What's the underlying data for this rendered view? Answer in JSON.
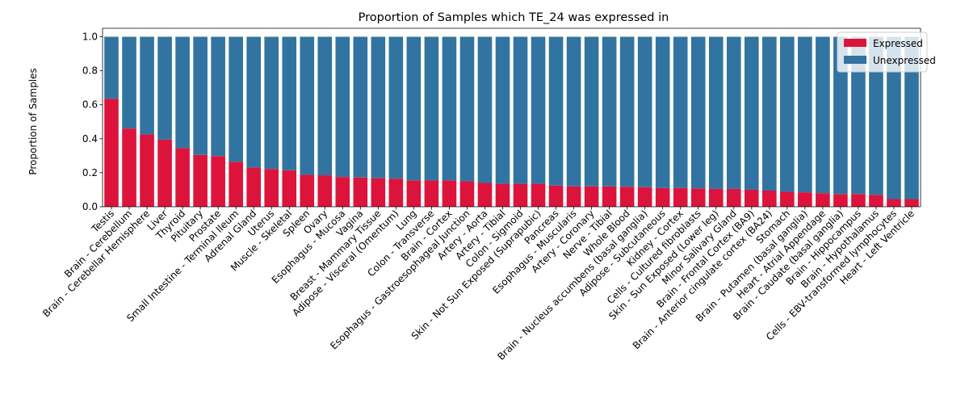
{
  "chart_data": {
    "type": "bar",
    "stacked": true,
    "title": "Proportion of Samples which TE_24 was expressed in",
    "xlabel": "",
    "ylabel": "Proportion of Samples",
    "ylim": [
      0,
      1.05
    ],
    "yticks": [
      "0.0",
      "0.2",
      "0.4",
      "0.6",
      "0.8",
      "1.0"
    ],
    "grid": false,
    "legend_position": "top-right",
    "categories": [
      "Testis",
      "Brain - Cerebellum",
      "Brain - Cerebellar Hemisphere",
      "Liver",
      "Thyroid",
      "Pituitary",
      "Prostate",
      "Small Intestine - Terminal Ileum",
      "Adrenal Gland",
      "Uterus",
      "Muscle - Skeletal",
      "Spleen",
      "Ovary",
      "Esophagus - Mucosa",
      "Vagina",
      "Breast - Mammary Tissue",
      "Adipose - Visceral (Omentum)",
      "Lung",
      "Colon - Transverse",
      "Brain - Cortex",
      "Esophagus - Gastroesophageal Junction",
      "Artery - Aorta",
      "Artery - Tibial",
      "Colon - Sigmoid",
      "Skin - Not Sun Exposed (Suprapubic)",
      "Pancreas",
      "Esophagus - Muscularis",
      "Artery - Coronary",
      "Nerve - Tibial",
      "Whole Blood",
      "Brain - Nucleus accumbens (basal ganglia)",
      "Adipose - Subcutaneous",
      "Kidney - Cortex",
      "Cells - Cultured fibroblasts",
      "Skin - Sun Exposed (Lower leg)",
      "Minor Salivary Gland",
      "Brain - Frontal Cortex (BA9)",
      "Brain - Anterior cingulate cortex (BA24)",
      "Stomach",
      "Brain - Putamen (basal ganglia)",
      "Heart - Atrial Appendage",
      "Brain - Caudate (basal ganglia)",
      "Brain - Hippocampus",
      "Brain - Hypothalamus",
      "Cells - EBV-transformed lymphocytes",
      "Heart - Left Ventricle"
    ],
    "series": [
      {
        "name": "Expressed",
        "color": "#dc143c",
        "values": [
          0.635,
          0.46,
          0.425,
          0.395,
          0.345,
          0.305,
          0.298,
          0.265,
          0.23,
          0.222,
          0.215,
          0.188,
          0.185,
          0.175,
          0.172,
          0.168,
          0.165,
          0.155,
          0.155,
          0.155,
          0.15,
          0.14,
          0.135,
          0.135,
          0.135,
          0.125,
          0.12,
          0.12,
          0.12,
          0.118,
          0.115,
          0.11,
          0.11,
          0.108,
          0.105,
          0.105,
          0.1,
          0.095,
          0.088,
          0.085,
          0.08,
          0.075,
          0.075,
          0.07,
          0.045,
          0.045
        ]
      },
      {
        "name": "Unexpressed",
        "color": "#3274a1",
        "values": [
          0.365,
          0.54,
          0.575,
          0.605,
          0.655,
          0.695,
          0.702,
          0.735,
          0.77,
          0.778,
          0.785,
          0.812,
          0.815,
          0.825,
          0.828,
          0.832,
          0.835,
          0.845,
          0.845,
          0.845,
          0.85,
          0.86,
          0.865,
          0.865,
          0.865,
          0.875,
          0.88,
          0.88,
          0.88,
          0.882,
          0.885,
          0.89,
          0.89,
          0.892,
          0.895,
          0.895,
          0.9,
          0.905,
          0.912,
          0.915,
          0.92,
          0.925,
          0.925,
          0.93,
          0.955,
          0.955
        ]
      }
    ]
  }
}
